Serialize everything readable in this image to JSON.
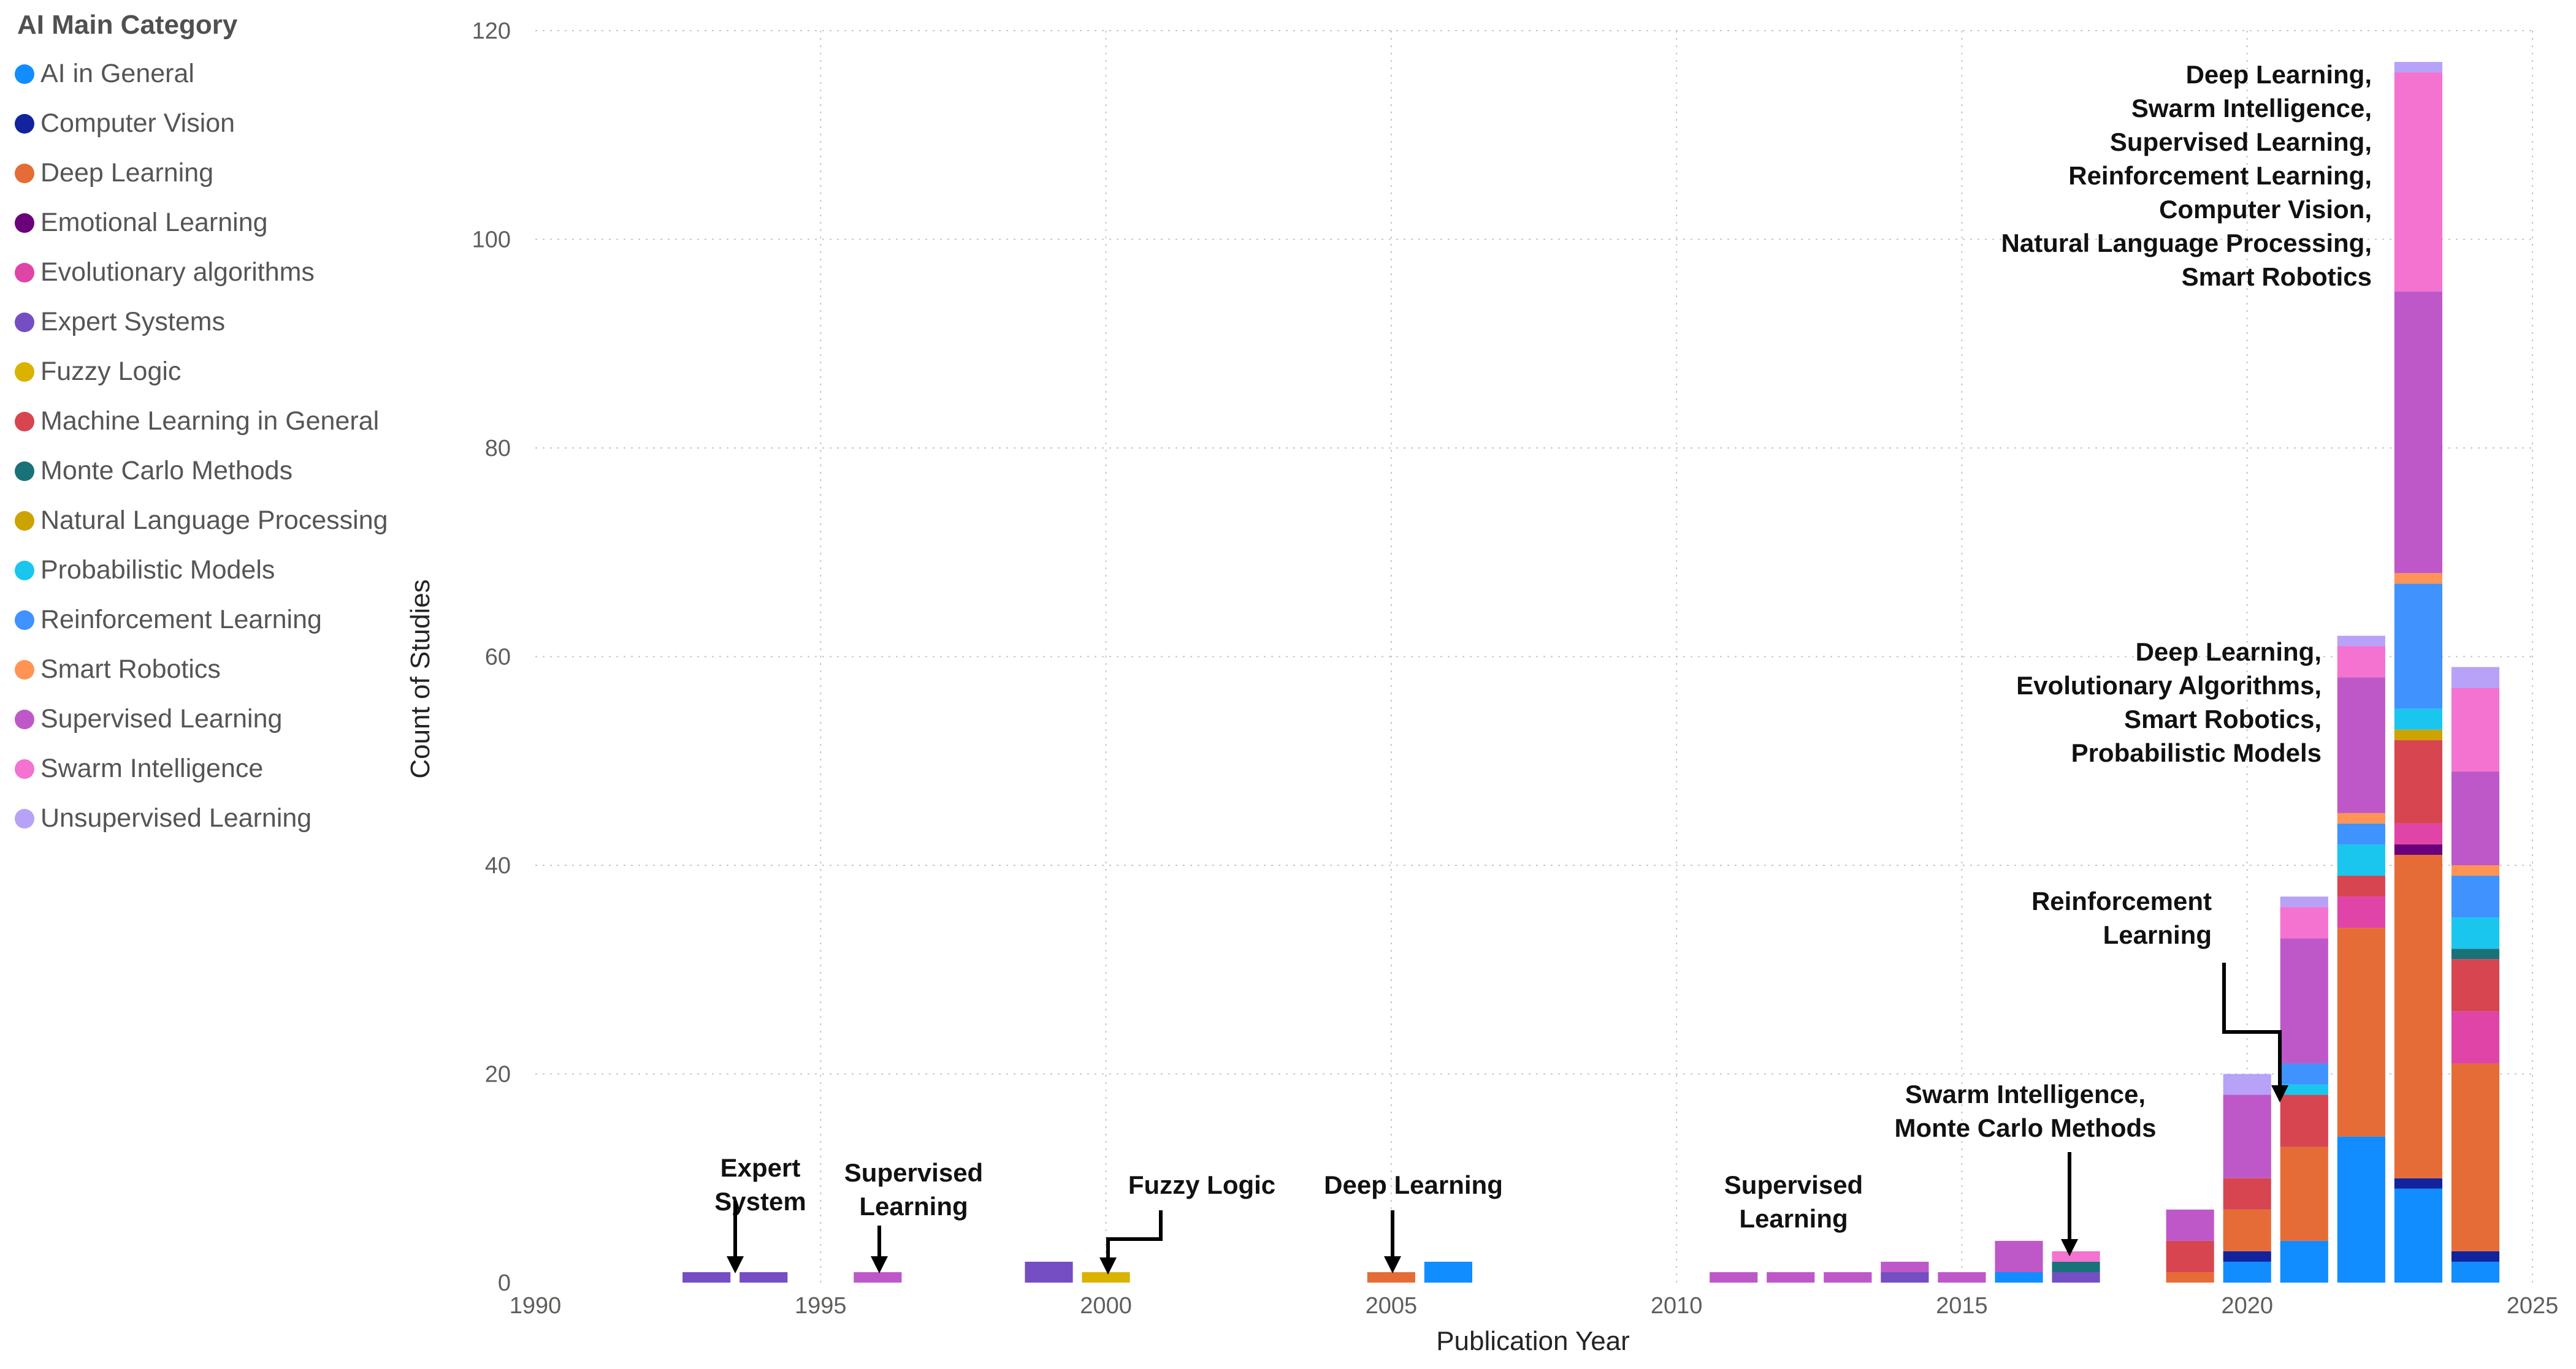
{
  "chart_data": {
    "type": "bar",
    "stacked": true,
    "title": "",
    "xlabel": "Publication Year",
    "ylabel": "Count of Studies",
    "xlim": [
      1990,
      2025
    ],
    "ylim": [
      0,
      120
    ],
    "x_ticks": [
      1990,
      1995,
      2000,
      2005,
      2010,
      2015,
      2020,
      2025
    ],
    "y_ticks": [
      0,
      20,
      40,
      60,
      80,
      100,
      120
    ],
    "grid": true,
    "legend_title": "AI Main Category",
    "legend_position": "left",
    "categories": [
      1993,
      1994,
      1996,
      1999,
      2000,
      2005,
      2006,
      2011,
      2012,
      2013,
      2014,
      2015,
      2016,
      2017,
      2019,
      2020,
      2021,
      2022,
      2023,
      2024
    ],
    "series": [
      {
        "name": "AI in General",
        "color": "#118DFF",
        "values": [
          0,
          0,
          0,
          0,
          0,
          0,
          2,
          0,
          0,
          0,
          0,
          0,
          1,
          0,
          0,
          2,
          4,
          14,
          9,
          2
        ]
      },
      {
        "name": "Computer Vision",
        "color": "#12239E",
        "values": [
          0,
          0,
          0,
          0,
          0,
          0,
          0,
          0,
          0,
          0,
          0,
          0,
          0,
          0,
          0,
          1,
          0,
          0,
          1,
          1
        ]
      },
      {
        "name": "Deep Learning",
        "color": "#E66C37",
        "values": [
          0,
          0,
          0,
          0,
          0,
          1,
          0,
          0,
          0,
          0,
          0,
          0,
          0,
          0,
          1,
          4,
          9,
          20,
          31,
          18
        ]
      },
      {
        "name": "Emotional Learning",
        "color": "#6B007B",
        "values": [
          0,
          0,
          0,
          0,
          0,
          0,
          0,
          0,
          0,
          0,
          0,
          0,
          0,
          0,
          0,
          0,
          0,
          0,
          1,
          0
        ]
      },
      {
        "name": "Evolutionary algorithms",
        "color": "#E044A7",
        "values": [
          0,
          0,
          0,
          0,
          0,
          0,
          0,
          0,
          0,
          0,
          0,
          0,
          0,
          0,
          0,
          0,
          0,
          3,
          2,
          5
        ]
      },
      {
        "name": "Expert Systems",
        "color": "#744EC2",
        "values": [
          1,
          1,
          0,
          2,
          0,
          0,
          0,
          0,
          0,
          0,
          1,
          0,
          0,
          1,
          0,
          0,
          0,
          0,
          0,
          0
        ]
      },
      {
        "name": "Fuzzy Logic",
        "color": "#D9B300",
        "values": [
          0,
          0,
          0,
          0,
          1,
          0,
          0,
          0,
          0,
          0,
          0,
          0,
          0,
          0,
          0,
          0,
          0,
          0,
          0,
          0
        ]
      },
      {
        "name": "Machine Learning in General",
        "color": "#D64550",
        "values": [
          0,
          0,
          0,
          0,
          0,
          0,
          0,
          0,
          0,
          0,
          0,
          0,
          0,
          0,
          3,
          3,
          5,
          2,
          8,
          5
        ]
      },
      {
        "name": "Monte Carlo Methods",
        "color": "#197278",
        "values": [
          0,
          0,
          0,
          0,
          0,
          0,
          0,
          0,
          0,
          0,
          0,
          0,
          0,
          1,
          0,
          0,
          0,
          0,
          0,
          1
        ]
      },
      {
        "name": "Natural Language Processing",
        "color": "#CCA300",
        "values": [
          0,
          0,
          0,
          0,
          0,
          0,
          0,
          0,
          0,
          0,
          0,
          0,
          0,
          0,
          0,
          0,
          0,
          0,
          1,
          0
        ]
      },
      {
        "name": "Probabilistic Models",
        "color": "#1AC6EE",
        "values": [
          0,
          0,
          0,
          0,
          0,
          0,
          0,
          0,
          0,
          0,
          0,
          0,
          0,
          0,
          0,
          0,
          1,
          3,
          2,
          3
        ]
      },
      {
        "name": "Reinforcement Learning",
        "color": "#4092FF",
        "values": [
          0,
          0,
          0,
          0,
          0,
          0,
          0,
          0,
          0,
          0,
          0,
          0,
          0,
          0,
          0,
          0,
          2,
          2,
          12,
          4
        ]
      },
      {
        "name": "Smart Robotics",
        "color": "#FF9455",
        "values": [
          0,
          0,
          0,
          0,
          0,
          0,
          0,
          0,
          0,
          0,
          0,
          0,
          0,
          0,
          0,
          0,
          0,
          1,
          1,
          1
        ]
      },
      {
        "name": "Supervised Learning",
        "color": "#BE58C8",
        "values": [
          0,
          0,
          1,
          0,
          0,
          0,
          0,
          1,
          1,
          1,
          1,
          1,
          3,
          0,
          3,
          8,
          12,
          13,
          27,
          9
        ]
      },
      {
        "name": "Swarm Intelligence",
        "color": "#F472D0",
        "values": [
          0,
          0,
          0,
          0,
          0,
          0,
          0,
          0,
          0,
          0,
          0,
          0,
          0,
          1,
          0,
          0,
          3,
          3,
          21,
          8
        ]
      },
      {
        "name": "Unsupervised Learning",
        "color": "#B7A2F8",
        "values": [
          0,
          0,
          0,
          0,
          0,
          0,
          0,
          0,
          0,
          0,
          0,
          0,
          0,
          0,
          0,
          2,
          1,
          1,
          1,
          2
        ]
      }
    ],
    "annotations": [
      {
        "text": [
          "Expert",
          "System"
        ],
        "target_year": 1993.5
      },
      {
        "text": [
          "Supervised",
          "Learning"
        ],
        "target_year": 1996
      },
      {
        "text": [
          "Fuzzy Logic"
        ],
        "target_year": 2000
      },
      {
        "text": [
          "Deep Learning"
        ],
        "target_year": 2005
      },
      {
        "text": [
          "Supervised",
          "Learning"
        ],
        "target_year": 2011.8
      },
      {
        "text": [
          "Swarm Intelligence,",
          "Monte Carlo Methods"
        ],
        "target_year": 2017
      },
      {
        "text": [
          "Reinforcement",
          "Learning"
        ],
        "target_year": 2020.5
      },
      {
        "text": [
          "Deep Learning,",
          "Evolutionary Algorithms,",
          "Smart Robotics,",
          "Probabilistic Models"
        ],
        "target_year": 2022
      },
      {
        "text": [
          "Deep Learning,",
          "Swarm Intelligence,",
          "Supervised Learning,",
          "Reinforcement Learning,",
          "Computer Vision,",
          "Natural Language Processing,",
          "Smart Robotics"
        ],
        "target_year": 2023
      }
    ]
  }
}
